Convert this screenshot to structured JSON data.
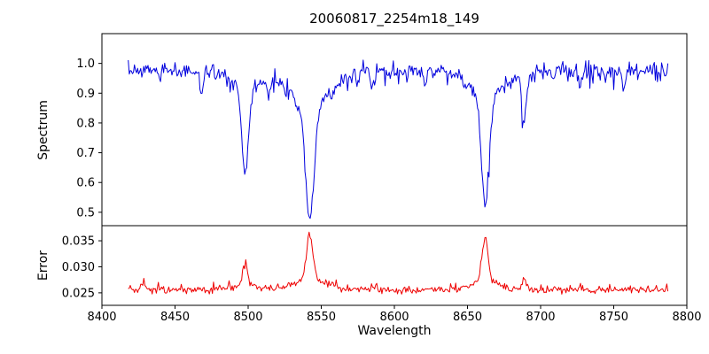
{
  "title": "20060817_2254m18_149",
  "x_axis": {
    "label": "Wavelength",
    "lim": [
      8400,
      8800
    ],
    "ticks": [
      {
        "v": 8400,
        "label": "8400"
      },
      {
        "v": 8450,
        "label": "8450"
      },
      {
        "v": 8500,
        "label": "8500"
      },
      {
        "v": 8550,
        "label": "8550"
      },
      {
        "v": 8600,
        "label": "8600"
      },
      {
        "v": 8650,
        "label": "8650"
      },
      {
        "v": 8700,
        "label": "8700"
      },
      {
        "v": 8750,
        "label": "8750"
      },
      {
        "v": 8800,
        "label": "8800"
      }
    ]
  },
  "chart_data": [
    {
      "type": "line",
      "name": "spectrum",
      "ylabel": "Spectrum",
      "color": "#0000dd",
      "ylim": [
        0.455,
        1.1
      ],
      "yticks": [
        {
          "v": 0.5,
          "label": "0.5"
        },
        {
          "v": 0.6,
          "label": "0.6"
        },
        {
          "v": 0.7,
          "label": "0.7"
        },
        {
          "v": 0.8,
          "label": "0.8"
        },
        {
          "v": 0.9,
          "label": "0.9"
        },
        {
          "v": 1.0,
          "label": "1.0"
        }
      ],
      "x_start": 8418,
      "x_end": 8787,
      "n_points": 520,
      "baseline": 0.975,
      "noise_sigma": 0.013,
      "spike_prob": 0.1,
      "spike_amp": 0.05,
      "spike_sign": -1,
      "feature_sign": -1,
      "clip_max": 1.03,
      "seed": 7,
      "features": [
        {
          "center": 8498.0,
          "amp": 0.34,
          "width": 2.2,
          "wing_frac": 0.18,
          "wing_scale": 4.0
        },
        {
          "center": 8542.1,
          "amp": 0.5,
          "width": 3.0,
          "wing_frac": 0.22,
          "wing_scale": 5.0
        },
        {
          "center": 8662.1,
          "amp": 0.44,
          "width": 2.6,
          "wing_frac": 0.2,
          "wing_scale": 4.5
        },
        {
          "center": 8688.6,
          "amp": 0.15,
          "width": 1.6,
          "wing_frac": 0.1,
          "wing_scale": 3.0
        },
        {
          "center": 8468.0,
          "amp": 0.07,
          "width": 1.2,
          "wing_frac": 0.0,
          "wing_scale": 1.0
        },
        {
          "center": 8514.0,
          "amp": 0.05,
          "width": 1.0,
          "wing_frac": 0.0,
          "wing_scale": 1.0
        },
        {
          "center": 8585.0,
          "amp": 0.06,
          "width": 1.2,
          "wing_frac": 0.0,
          "wing_scale": 1.0
        },
        {
          "center": 8621.0,
          "amp": 0.05,
          "width": 1.0,
          "wing_frac": 0.0,
          "wing_scale": 1.0
        },
        {
          "center": 8727.0,
          "amp": 0.05,
          "width": 1.0,
          "wing_frac": 0.0,
          "wing_scale": 1.0
        },
        {
          "center": 8757.0,
          "amp": 0.05,
          "width": 1.0,
          "wing_frac": 0.0,
          "wing_scale": 1.0
        }
      ]
    },
    {
      "type": "line",
      "name": "error",
      "ylabel": "Error",
      "color": "#ee0000",
      "ylim": [
        0.0226,
        0.0379
      ],
      "yticks": [
        {
          "v": 0.025,
          "label": "0.025"
        },
        {
          "v": 0.03,
          "label": "0.030"
        },
        {
          "v": 0.035,
          "label": "0.035"
        }
      ],
      "x_start": 8418,
      "x_end": 8787,
      "n_points": 520,
      "baseline": 0.0256,
      "noise_sigma": 0.00035,
      "spike_prob": 0.08,
      "spike_amp": 0.0012,
      "spike_sign": 1,
      "feature_sign": 1,
      "clip_max": null,
      "seed": 99,
      "features": [
        {
          "center": 8428.0,
          "amp": 0.0013,
          "width": 1.5,
          "wing_frac": 0.0,
          "wing_scale": 1.0
        },
        {
          "center": 8498.0,
          "amp": 0.0048,
          "width": 1.8,
          "wing_frac": 0.15,
          "wing_scale": 4.0
        },
        {
          "center": 8542.1,
          "amp": 0.0108,
          "width": 2.2,
          "wing_frac": 0.18,
          "wing_scale": 5.0
        },
        {
          "center": 8662.1,
          "amp": 0.01,
          "width": 2.0,
          "wing_frac": 0.18,
          "wing_scale": 4.5
        },
        {
          "center": 8688.6,
          "amp": 0.002,
          "width": 1.4,
          "wing_frac": 0.0,
          "wing_scale": 1.0
        }
      ]
    }
  ]
}
